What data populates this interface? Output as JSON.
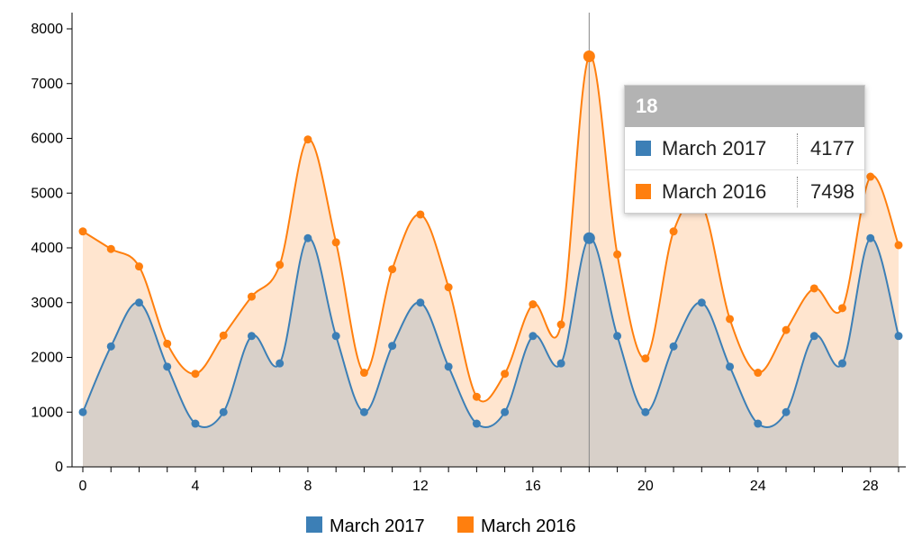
{
  "chart_data": {
    "type": "area",
    "x": [
      0,
      1,
      2,
      3,
      4,
      5,
      6,
      7,
      8,
      9,
      10,
      11,
      12,
      13,
      14,
      15,
      16,
      17,
      18,
      19,
      20,
      21,
      22,
      23,
      24,
      25,
      26,
      27,
      28,
      29
    ],
    "series": [
      {
        "name": "March 2017",
        "color": "#3c7fb6",
        "values": [
          1000,
          2200,
          3000,
          1830,
          790,
          1000,
          2390,
          1890,
          4177,
          2390,
          1000,
          2210,
          3000,
          1830,
          790,
          1000,
          2390,
          1890,
          4177,
          2390,
          1000,
          2200,
          3000,
          1830,
          790,
          1000,
          2390,
          1890,
          4177,
          2390
        ]
      },
      {
        "name": "March 2016",
        "color": "#ff7f0e",
        "values": [
          4300,
          3980,
          3660,
          2250,
          1700,
          2400,
          3110,
          3690,
          5980,
          4100,
          1720,
          3610,
          4610,
          3280,
          1280,
          1700,
          2970,
          2600,
          7498,
          3880,
          1980,
          4300,
          4800,
          2700,
          1720,
          2500,
          3260,
          2900,
          5300,
          4050
        ]
      }
    ],
    "xticks": [
      0,
      4,
      8,
      12,
      16,
      20,
      24,
      28
    ],
    "yticks": [
      0,
      1000,
      2000,
      3000,
      4000,
      5000,
      6000,
      7000,
      8000
    ],
    "xlim": [
      0,
      29
    ],
    "ylim": [
      0,
      8000
    ],
    "grid": false,
    "legend_position": "bottom",
    "highlight_x": 18
  },
  "tooltip": {
    "title": "18",
    "rows": [
      {
        "name": "March 2017",
        "value": "4177",
        "color": "#3c7fb6"
      },
      {
        "name": "March 2016",
        "value": "7498",
        "color": "#ff7f0e"
      }
    ]
  },
  "legend": [
    {
      "name": "March 2017",
      "color": "#3c7fb6"
    },
    {
      "name": "March 2016",
      "color": "#ff7f0e"
    }
  ]
}
